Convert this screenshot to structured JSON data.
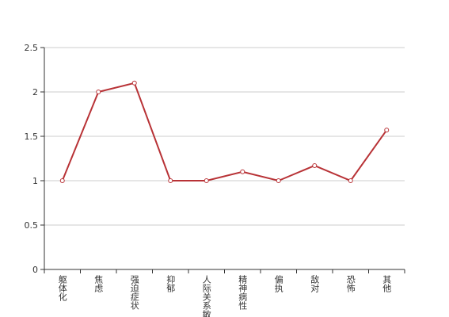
{
  "chart_data": {
    "type": "line",
    "categories": [
      "躯体化",
      "焦虑",
      "强迫症状",
      "抑郁",
      "人际关系敏感",
      "精神病性",
      "偏执",
      "敌对",
      "恐怖",
      "其他"
    ],
    "values": [
      1,
      2,
      2.1,
      1,
      1,
      1.1,
      1,
      1.17,
      1,
      1.57
    ],
    "color": "#b83236",
    "ylim": [
      0,
      2.5
    ],
    "yticks": [
      0,
      0.5,
      1,
      1.5,
      2,
      2.5
    ],
    "grid": true
  }
}
